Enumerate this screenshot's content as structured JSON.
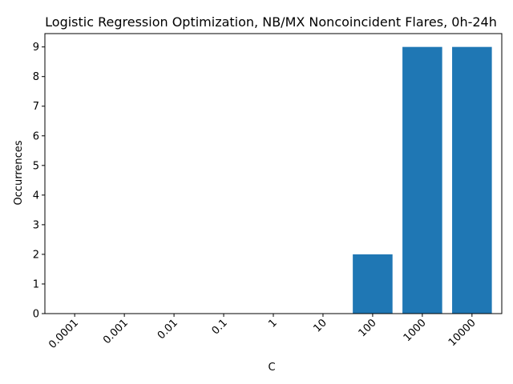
{
  "chart_data": {
    "type": "bar",
    "title": "Logistic Regression Optimization, NB/MX Noncoincident Flares, 0h-24h",
    "xlabel": "C",
    "ylabel": "Occurrences",
    "categories": [
      "0.0001",
      "0.001",
      "0.01",
      "0.1",
      "1",
      "10",
      "100",
      "1000",
      "10000"
    ],
    "values": [
      0,
      0,
      0,
      0,
      0,
      0,
      2,
      9,
      9
    ],
    "ylim": [
      0,
      9.45
    ],
    "yticks": [
      "0",
      "1",
      "2",
      "3",
      "4",
      "5",
      "6",
      "7",
      "8",
      "9"
    ],
    "bar_color": "#1f77b4",
    "grid": false,
    "legend": "none",
    "xtick_rotation": 45
  }
}
